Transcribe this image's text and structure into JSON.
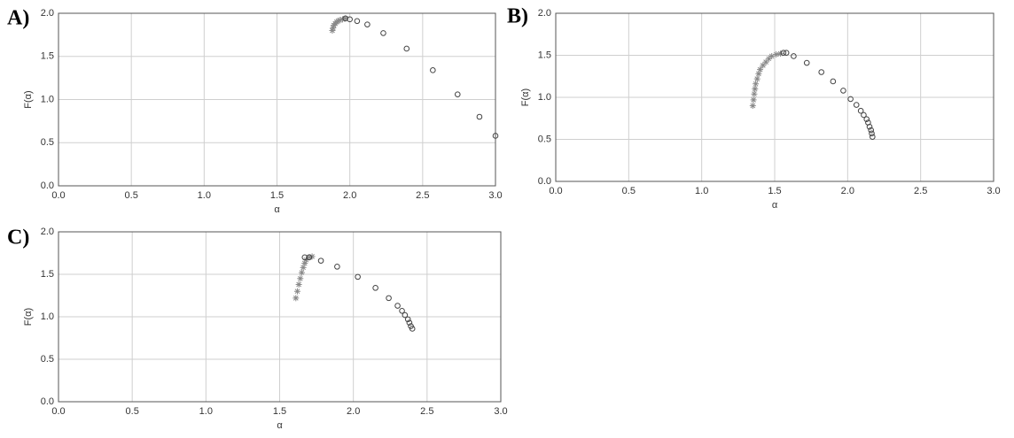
{
  "chart_data": [
    {
      "type": "scatter",
      "title": "A)",
      "xlabel": "α",
      "ylabel": "F(α)",
      "xlim": [
        0,
        3
      ],
      "ylim": [
        0,
        2
      ],
      "xticks": [
        {
          "value": 0,
          "label": "0.0"
        },
        {
          "value": 0.5,
          "label": "0.5"
        },
        {
          "value": 1,
          "label": "1.0"
        },
        {
          "value": 1.5,
          "label": "1.5"
        },
        {
          "value": 2,
          "label": "2.0"
        },
        {
          "value": 2.5,
          "label": "2.5"
        },
        {
          "value": 3,
          "label": "3.0"
        }
      ],
      "yticks": [
        {
          "value": 0,
          "label": "0.0"
        },
        {
          "value": 0.5,
          "label": "0.5"
        },
        {
          "value": 1,
          "label": "1.0"
        },
        {
          "value": 1.5,
          "label": "1.5"
        },
        {
          "value": 2,
          "label": "2.0"
        }
      ],
      "grid": true,
      "series": [
        {
          "marker": "star",
          "color": "#8a8a8a",
          "x": [
            1.88,
            1.885,
            1.89,
            1.9,
            1.91,
            1.92,
            1.93,
            1.95,
            1.97
          ],
          "values": [
            1.8,
            1.83,
            1.86,
            1.88,
            1.9,
            1.91,
            1.92,
            1.93,
            1.94
          ]
        },
        {
          "marker": "circle",
          "color": "#444444",
          "x": [
            1.97,
            2.0,
            2.05,
            2.12,
            2.23,
            2.39,
            2.57,
            2.74,
            2.89,
            3.0
          ],
          "values": [
            1.94,
            1.93,
            1.91,
            1.87,
            1.77,
            1.59,
            1.34,
            1.06,
            0.8,
            0.58
          ]
        }
      ]
    },
    {
      "type": "scatter",
      "title": "B)",
      "xlabel": "α",
      "ylabel": "F(α)",
      "xlim": [
        0,
        3
      ],
      "ylim": [
        0,
        2
      ],
      "xticks": [
        {
          "value": 0,
          "label": "0.0"
        },
        {
          "value": 0.5,
          "label": "0.5"
        },
        {
          "value": 1,
          "label": "1.0"
        },
        {
          "value": 1.5,
          "label": "1.5"
        },
        {
          "value": 2,
          "label": "2.0"
        },
        {
          "value": 2.5,
          "label": "2.5"
        },
        {
          "value": 3,
          "label": "3.0"
        }
      ],
      "yticks": [
        {
          "value": 0,
          "label": "0.0"
        },
        {
          "value": 0.5,
          "label": "0.5"
        },
        {
          "value": 1,
          "label": "1.0"
        },
        {
          "value": 1.5,
          "label": "1.5"
        },
        {
          "value": 2,
          "label": "2.0"
        }
      ],
      "grid": true,
      "series": [
        {
          "marker": "star",
          "color": "#8a8a8a",
          "x": [
            1.35,
            1.355,
            1.36,
            1.365,
            1.37,
            1.38,
            1.39,
            1.4,
            1.42,
            1.44,
            1.46,
            1.48,
            1.51,
            1.54
          ],
          "values": [
            0.9,
            0.97,
            1.04,
            1.1,
            1.16,
            1.22,
            1.28,
            1.33,
            1.38,
            1.42,
            1.46,
            1.49,
            1.51,
            1.52
          ]
        },
        {
          "marker": "circle",
          "color": "#444444",
          "x": [
            1.56,
            1.58,
            1.63,
            1.72,
            1.82,
            1.9,
            1.97,
            2.02,
            2.06,
            2.09,
            2.11,
            2.13,
            2.14,
            2.15,
            2.16,
            2.165,
            2.17
          ],
          "values": [
            1.53,
            1.53,
            1.49,
            1.41,
            1.3,
            1.19,
            1.08,
            0.98,
            0.91,
            0.84,
            0.79,
            0.74,
            0.7,
            0.65,
            0.61,
            0.57,
            0.53
          ]
        }
      ]
    },
    {
      "type": "scatter",
      "title": "C)",
      "xlabel": "α",
      "ylabel": "F(α)",
      "xlim": [
        0,
        3
      ],
      "ylim": [
        0,
        2
      ],
      "xticks": [
        {
          "value": 0,
          "label": "0.0"
        },
        {
          "value": 0.5,
          "label": "0.5"
        },
        {
          "value": 1,
          "label": "1.0"
        },
        {
          "value": 1.5,
          "label": "1.5"
        },
        {
          "value": 2,
          "label": "2.0"
        },
        {
          "value": 2.5,
          "label": "2.5"
        },
        {
          "value": 3,
          "label": "3.0"
        }
      ],
      "yticks": [
        {
          "value": 0,
          "label": "0.0"
        },
        {
          "value": 0.5,
          "label": "0.5"
        },
        {
          "value": 1,
          "label": "1.0"
        },
        {
          "value": 1.5,
          "label": "1.5"
        },
        {
          "value": 2,
          "label": "2.0"
        }
      ],
      "grid": true,
      "series": [
        {
          "marker": "star",
          "color": "#8a8a8a",
          "x": [
            1.61,
            1.62,
            1.63,
            1.64,
            1.65,
            1.66,
            1.67,
            1.68,
            1.7,
            1.72
          ],
          "values": [
            1.22,
            1.3,
            1.38,
            1.45,
            1.52,
            1.58,
            1.63,
            1.67,
            1.7,
            1.71
          ]
        },
        {
          "marker": "circle",
          "color": "#444444",
          "x": [
            1.67,
            1.7,
            1.78,
            1.89,
            2.03,
            2.15,
            2.24,
            2.3,
            2.33,
            2.35,
            2.37,
            2.38,
            2.39,
            2.4
          ],
          "values": [
            1.7,
            1.7,
            1.66,
            1.59,
            1.47,
            1.34,
            1.22,
            1.13,
            1.07,
            1.02,
            0.97,
            0.93,
            0.89,
            0.86
          ]
        }
      ]
    }
  ]
}
